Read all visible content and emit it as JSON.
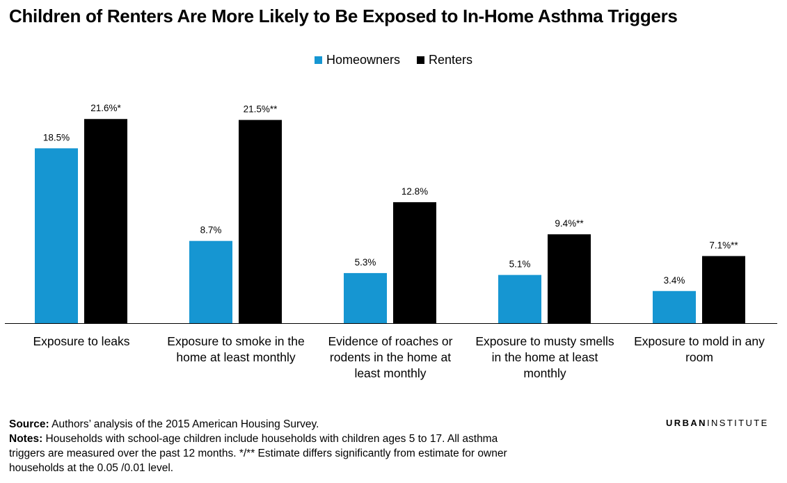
{
  "title": "Children of Renters Are More Likely to Be Exposed to In-Home Asthma Triggers",
  "chart_data": {
    "type": "bar",
    "categories": [
      "Exposure to leaks",
      "Exposure to smoke in the home at least monthly",
      "Evidence of roaches or rodents in the home at least monthly",
      "Exposure to musty smells in the home at least monthly",
      "Exposure to mold in any room"
    ],
    "series": [
      {
        "name": "Homeowners",
        "color": "#1696d2",
        "values": [
          18.5,
          8.7,
          5.3,
          5.1,
          3.4
        ],
        "labels": [
          "18.5%",
          "8.7%",
          "5.3%",
          "5.1%",
          "3.4%"
        ]
      },
      {
        "name": "Renters",
        "color": "#000000",
        "values": [
          21.6,
          21.5,
          12.8,
          9.4,
          7.1
        ],
        "labels": [
          "21.6%*",
          "21.5%**",
          "12.8%",
          "9.4%**",
          "7.1%**"
        ]
      }
    ],
    "xlabel": "",
    "ylabel": "",
    "ylim": [
      0,
      25
    ],
    "grid": false,
    "legend": "top-center"
  },
  "footer": {
    "source_label": "Source:",
    "source_text": "Authors’ analysis of the 2015 American Housing Survey.",
    "notes_label": "Notes:",
    "notes_text": "Households with school-age children include households with children ages 5 to 17. All asthma triggers are measured over the past 12 months. */** Estimate differs significantly from estimate for owner households at the 0.05 /0.01 level."
  },
  "brand": {
    "bold": "URBAN",
    "thin": "INSTITUTE"
  }
}
